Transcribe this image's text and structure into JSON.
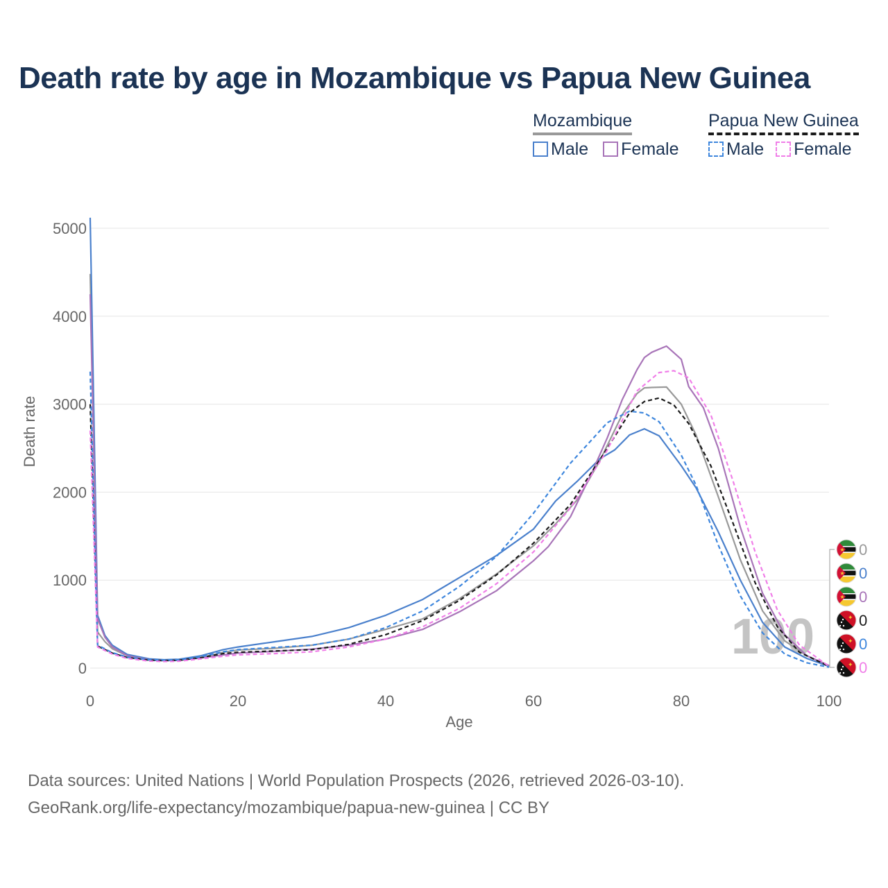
{
  "chart_data": {
    "type": "line",
    "title": "Death rate by age in Mozambique vs Papua New Guinea",
    "xlabel": "Age",
    "ylabel": "Death rate",
    "xlim": [
      0,
      100
    ],
    "ylim": [
      0,
      5000
    ],
    "x_ticks": [
      "0",
      "20",
      "40",
      "60",
      "80",
      "100"
    ],
    "y_ticks": [
      "0",
      "1000",
      "2000",
      "3000",
      "4000",
      "5000"
    ],
    "grid": true,
    "legend_groups": [
      {
        "name": "Mozambique",
        "items": [
          "Male",
          "Female"
        ]
      },
      {
        "name": "Papua New Guinea",
        "items": [
          "Male",
          "Female"
        ]
      }
    ],
    "year_label": "100",
    "series": [
      {
        "name": "Mozambique total",
        "country": "Mozambique",
        "color": "#999999",
        "dashed": false,
        "end_label": "0",
        "x": [
          0,
          1,
          2,
          3,
          5,
          8,
          10,
          12,
          15,
          18,
          20,
          25,
          30,
          35,
          40,
          45,
          50,
          55,
          60,
          63,
          66,
          69,
          72,
          74,
          75,
          76,
          78,
          80,
          82,
          85,
          88,
          91,
          94,
          97,
          100
        ],
        "y": [
          4480,
          410,
          300,
          220,
          140,
          100,
          90,
          92,
          120,
          180,
          205,
          225,
          260,
          330,
          440,
          560,
          790,
          1070,
          1390,
          1640,
          1920,
          2360,
          2880,
          3120,
          3185,
          3190,
          3195,
          3000,
          2650,
          1950,
          1230,
          650,
          310,
          140,
          25
        ]
      },
      {
        "name": "Mozambique male",
        "country": "Mozambique",
        "color": "#4a80cc",
        "dashed": false,
        "end_label": "0",
        "x": [
          0,
          1,
          2,
          3,
          5,
          8,
          10,
          12,
          15,
          18,
          20,
          25,
          30,
          35,
          40,
          45,
          50,
          55,
          60,
          63,
          66,
          69,
          71,
          73,
          75,
          77,
          80,
          82,
          85,
          88,
          91,
          94,
          97,
          100
        ],
        "y": [
          5120,
          600,
          370,
          260,
          155,
          105,
          95,
          100,
          140,
          210,
          240,
          300,
          360,
          460,
          600,
          780,
          1030,
          1280,
          1580,
          1900,
          2130,
          2380,
          2480,
          2650,
          2720,
          2640,
          2300,
          2050,
          1550,
          1000,
          520,
          240,
          110,
          20
        ]
      },
      {
        "name": "Mozambique female",
        "country": "Mozambique",
        "color": "#a874b8",
        "dashed": false,
        "end_label": "0",
        "x": [
          0,
          1,
          2,
          3,
          5,
          8,
          10,
          12,
          15,
          18,
          20,
          25,
          30,
          35,
          40,
          45,
          50,
          55,
          60,
          62,
          65,
          68,
          70,
          72,
          74,
          75,
          76,
          78,
          80,
          81,
          83,
          85,
          88,
          91,
          94,
          97,
          100
        ],
        "y": [
          4250,
          560,
          350,
          240,
          140,
          95,
          85,
          90,
          115,
          150,
          170,
          190,
          215,
          260,
          330,
          440,
          640,
          880,
          1220,
          1380,
          1720,
          2240,
          2620,
          3050,
          3390,
          3530,
          3590,
          3660,
          3510,
          3200,
          2960,
          2500,
          1600,
          850,
          380,
          140,
          30
        ]
      },
      {
        "name": "Papua New Guinea total",
        "country": "Papua New Guinea",
        "color": "#1a1a1a",
        "dashed": true,
        "end_label": "0",
        "x": [
          0,
          1,
          3,
          5,
          8,
          10,
          12,
          15,
          18,
          20,
          25,
          30,
          35,
          40,
          45,
          50,
          55,
          60,
          65,
          70,
          73,
          75,
          77,
          79,
          81,
          84,
          87,
          90,
          93,
          96,
          100
        ],
        "y": [
          3000,
          250,
          170,
          120,
          90,
          85,
          88,
          120,
          165,
          180,
          195,
          210,
          270,
          380,
          540,
          770,
          1060,
          1420,
          1860,
          2500,
          2900,
          3030,
          3070,
          2990,
          2780,
          2300,
          1650,
          970,
          470,
          180,
          20
        ]
      },
      {
        "name": "Papua New Guinea male",
        "country": "Papua New Guinea",
        "color": "#3d86dd",
        "dashed": true,
        "end_label": "0",
        "x": [
          0,
          1,
          3,
          5,
          8,
          10,
          12,
          15,
          18,
          20,
          25,
          30,
          35,
          40,
          45,
          50,
          55,
          60,
          65,
          70,
          73,
          75,
          77,
          80,
          82,
          85,
          88,
          91,
          94,
          97,
          100
        ],
        "y": [
          3370,
          260,
          175,
          125,
          95,
          90,
          93,
          130,
          185,
          210,
          235,
          260,
          330,
          460,
          650,
          930,
          1270,
          1760,
          2330,
          2790,
          2920,
          2900,
          2800,
          2420,
          2080,
          1400,
          820,
          400,
          160,
          60,
          10
        ]
      },
      {
        "name": "Papua New Guinea female",
        "country": "Papua New Guinea",
        "color": "#f07ee8",
        "dashed": true,
        "end_label": "0",
        "x": [
          0,
          1,
          3,
          5,
          8,
          10,
          12,
          15,
          18,
          20,
          25,
          30,
          35,
          40,
          45,
          50,
          55,
          60,
          65,
          70,
          74,
          77,
          79,
          81,
          84,
          87,
          90,
          93,
          96,
          100
        ],
        "y": [
          2700,
          240,
          160,
          110,
          80,
          75,
          78,
          105,
          135,
          150,
          165,
          185,
          240,
          330,
          470,
          680,
          960,
          1320,
          1820,
          2480,
          3150,
          3360,
          3380,
          3300,
          2880,
          2130,
          1320,
          660,
          260,
          20
        ]
      }
    ]
  },
  "source": {
    "line1": "Data sources: United Nations | World Population Prospects (2026, retrieved 2026-03-10).",
    "line2": "GeoRank.org/life-expectancy/mozambique/papua-new-guinea | CC BY"
  }
}
